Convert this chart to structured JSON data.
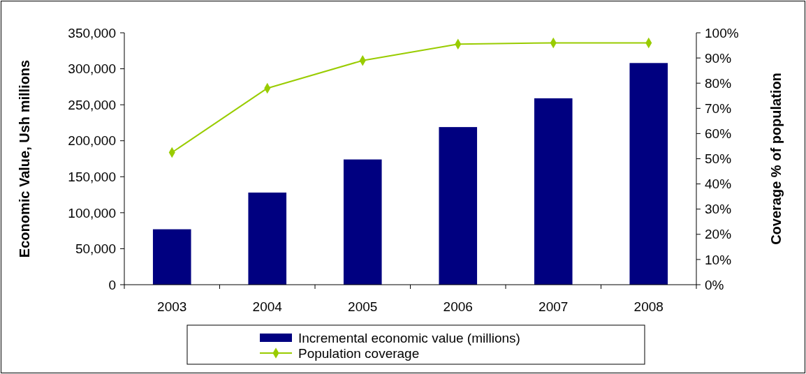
{
  "chart_data": {
    "type": "bar",
    "categories": [
      "2003",
      "2004",
      "2005",
      "2006",
      "2007",
      "2008"
    ],
    "ylabel": "Economic Value, Ush millions",
    "y2label": "Coverage % of population",
    "ylim": [
      0,
      350000
    ],
    "yticks": [
      {
        "value": 0,
        "label": "0"
      },
      {
        "value": 50000,
        "label": "50,000"
      },
      {
        "value": 100000,
        "label": "100,000"
      },
      {
        "value": 150000,
        "label": "150,000"
      },
      {
        "value": 200000,
        "label": "200,000"
      },
      {
        "value": 250000,
        "label": "250,000"
      },
      {
        "value": 300000,
        "label": "300,000"
      },
      {
        "value": 350000,
        "label": "350,000"
      }
    ],
    "y2lim": [
      0,
      100
    ],
    "y2ticks": [
      {
        "value": 0,
        "label": "0%"
      },
      {
        "value": 10,
        "label": "10%"
      },
      {
        "value": 20,
        "label": "20%"
      },
      {
        "value": 30,
        "label": "30%"
      },
      {
        "value": 40,
        "label": "40%"
      },
      {
        "value": 50,
        "label": "50%"
      },
      {
        "value": 60,
        "label": "60%"
      },
      {
        "value": 70,
        "label": "70%"
      },
      {
        "value": 80,
        "label": "80%"
      },
      {
        "value": 90,
        "label": "90%"
      },
      {
        "value": 100,
        "label": "100%"
      }
    ],
    "series": [
      {
        "name": "Incremental economic value (millions)",
        "color": "#000080",
        "values": [
          77000,
          128000,
          174000,
          219000,
          259000,
          308000
        ]
      },
      {
        "name": "Population coverage",
        "type": "line",
        "axis": "y2",
        "color": "#99cc00",
        "marker": "diamond",
        "values": [
          52.5,
          78,
          89,
          95.5,
          96,
          96
        ]
      }
    ],
    "legend": "bottom",
    "grid": false
  }
}
